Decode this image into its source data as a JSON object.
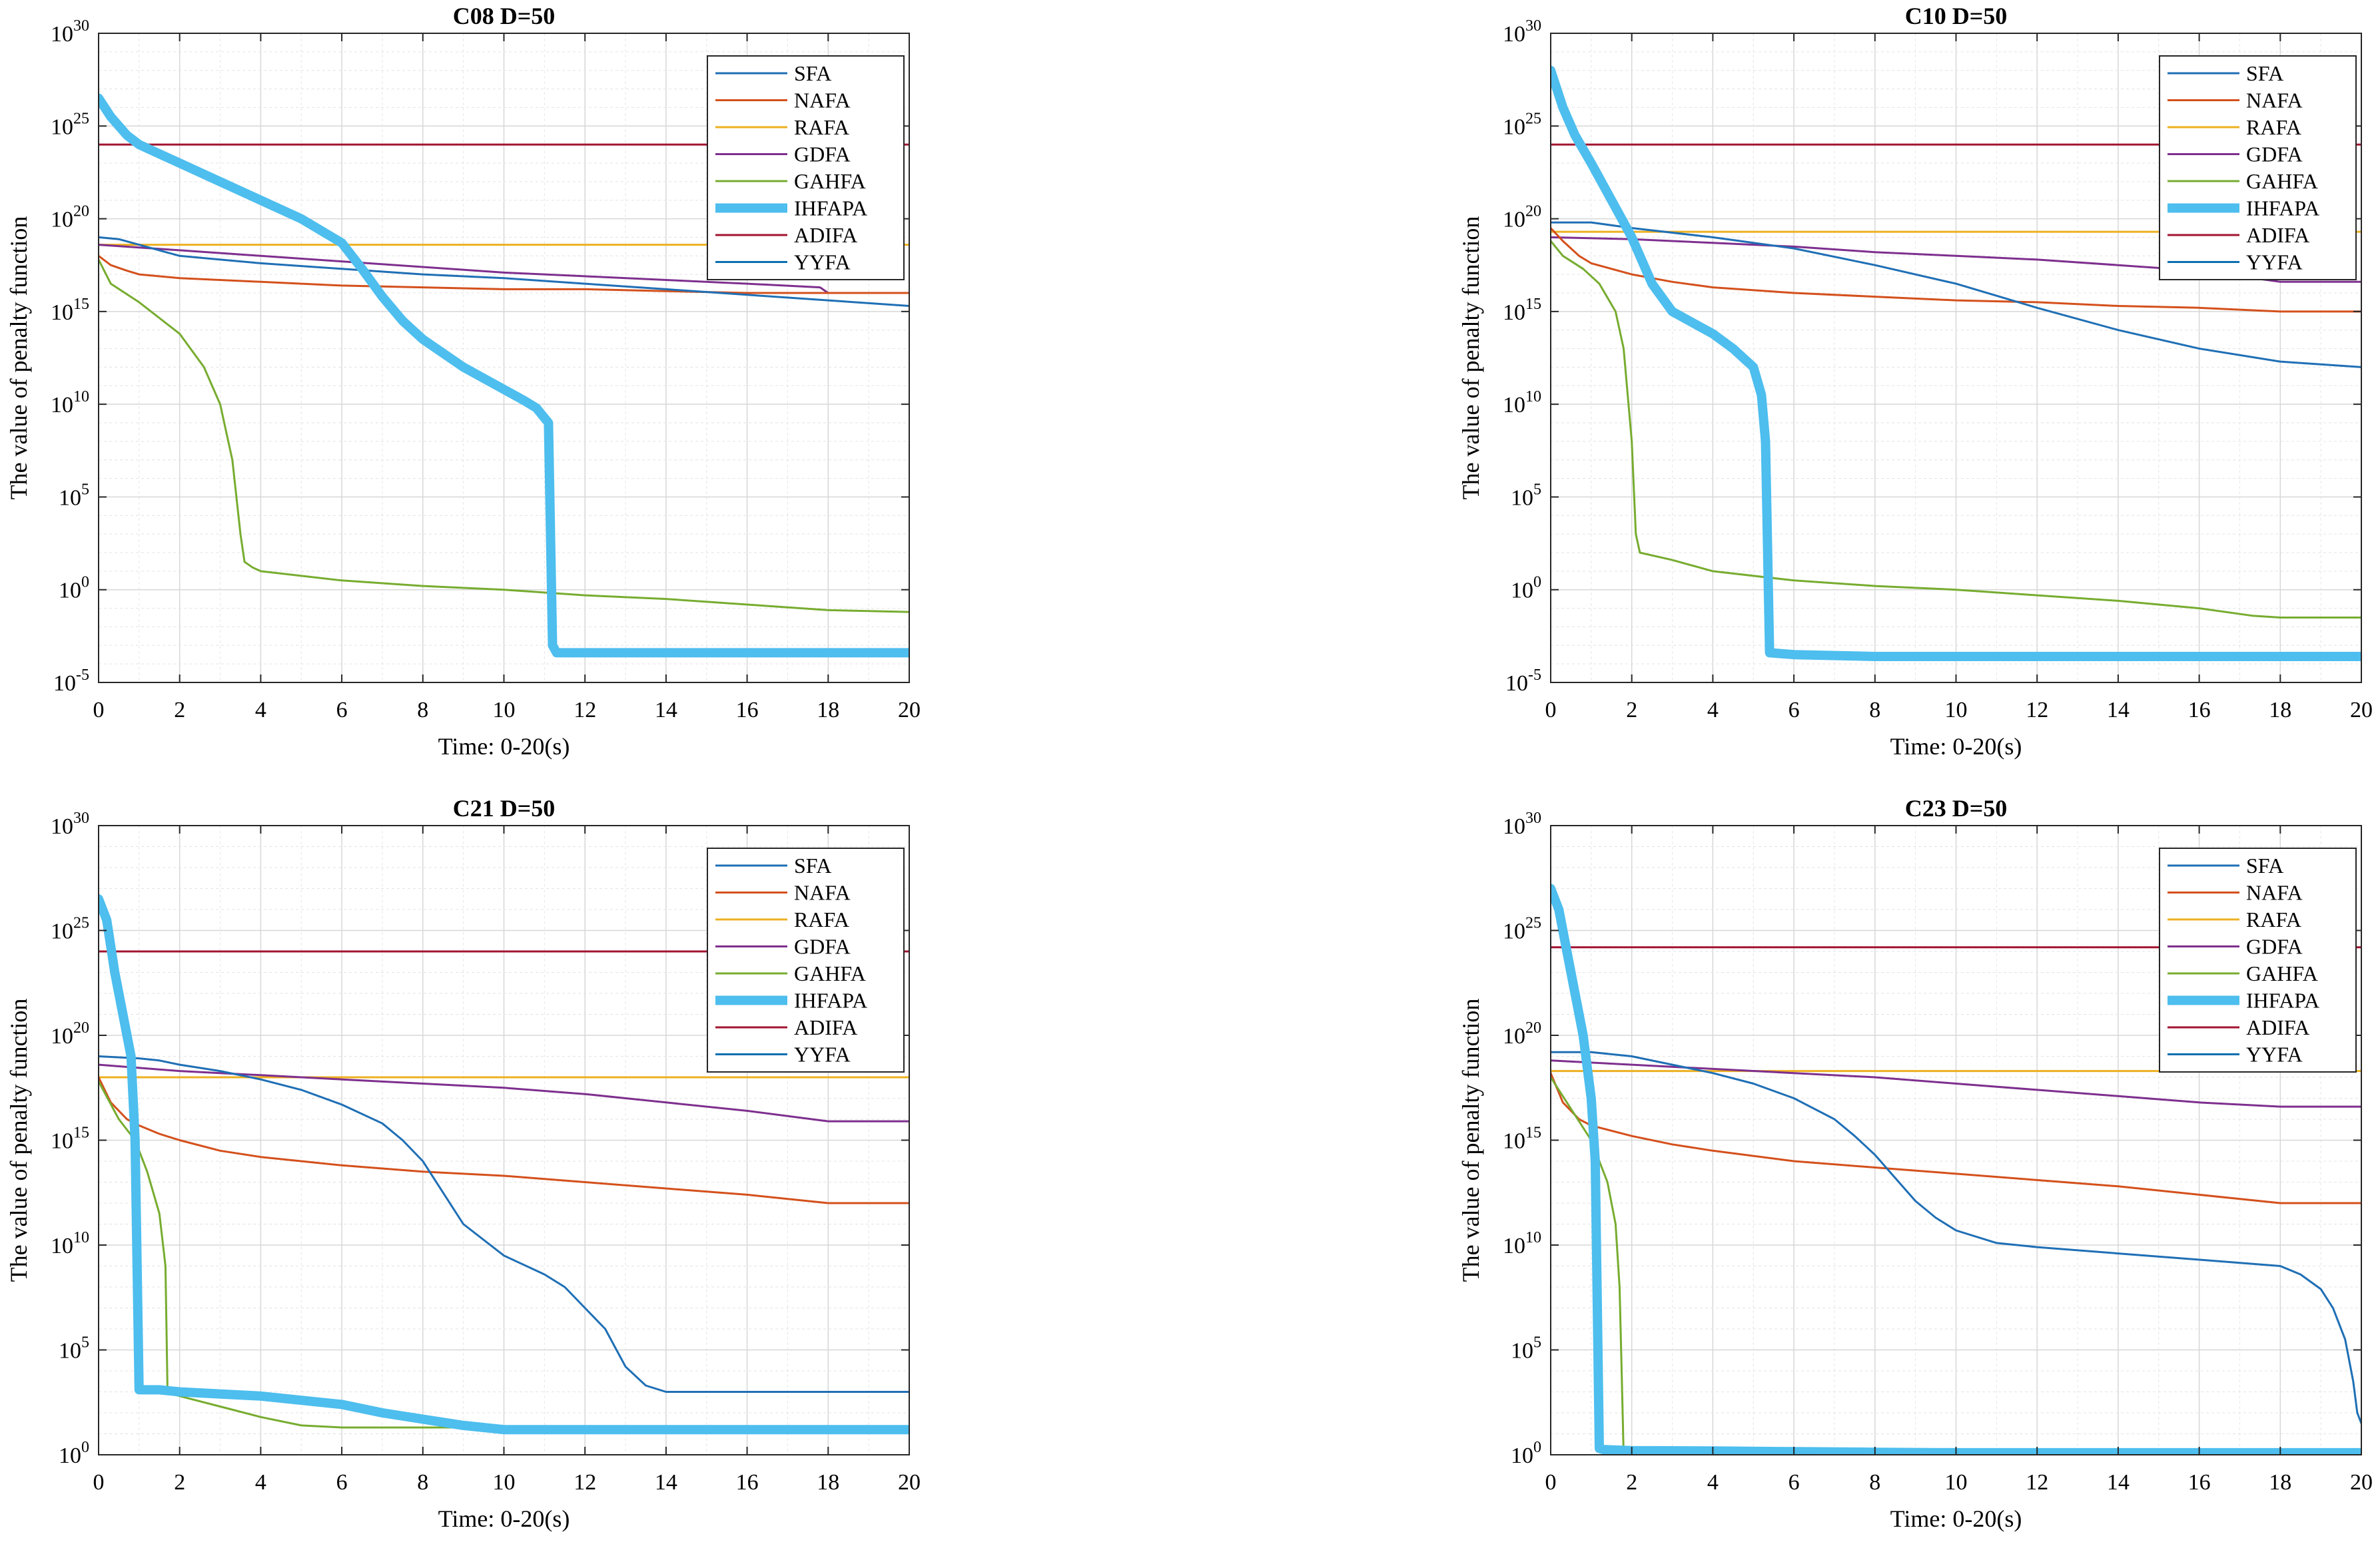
{
  "colors": {
    "SFA": "#1f6fb5",
    "NAFA": "#d4501c",
    "RAFA": "#edb021",
    "GDFA": "#7e2f8e",
    "GAHFA": "#77ac30",
    "IHFAPA": "#4dbeee",
    "ADIFA": "#a2142f",
    "YYFA": "#0b6fb0"
  },
  "chart_data": [
    {
      "type": "line",
      "title": "C08  D=50",
      "xlabel": "Time:   0-20(s)",
      "ylabel": "The value of penalty function",
      "xlim": [
        0,
        20
      ],
      "xticks": [
        "0",
        "2",
        "4",
        "6",
        "8",
        "10",
        "12",
        "14",
        "16",
        "18",
        "20"
      ],
      "yscale": "log",
      "ylim_exp": [
        -5,
        30
      ],
      "ytick_exps": [
        -5,
        0,
        5,
        10,
        15,
        20,
        25,
        30
      ],
      "grid": true,
      "legend_position": "top-right",
      "series": [
        {
          "name": "SFA",
          "x": [
            0,
            0.5,
            1,
            2,
            3,
            4,
            6,
            8,
            10,
            12,
            14,
            16,
            18,
            20
          ],
          "log10y": [
            19.0,
            18.9,
            18.6,
            18.0,
            17.8,
            17.6,
            17.3,
            17.0,
            16.8,
            16.5,
            16.2,
            15.9,
            15.6,
            15.3
          ]
        },
        {
          "name": "NAFA",
          "x": [
            0,
            0.3,
            0.7,
            1,
            2,
            4,
            6,
            8,
            10,
            12,
            14,
            16,
            18,
            20
          ],
          "log10y": [
            18.0,
            17.5,
            17.2,
            17.0,
            16.8,
            16.6,
            16.4,
            16.3,
            16.2,
            16.2,
            16.1,
            16.0,
            16.0,
            16.0
          ]
        },
        {
          "name": "RAFA",
          "x": [
            0,
            20
          ],
          "log10y": [
            18.6,
            18.6
          ]
        },
        {
          "name": "GDFA",
          "x": [
            0,
            2,
            4,
            6,
            8,
            10,
            12,
            14,
            16,
            17.8,
            18,
            20
          ],
          "log10y": [
            18.6,
            18.3,
            18.0,
            17.7,
            17.4,
            17.1,
            16.9,
            16.7,
            16.5,
            16.3,
            16.0,
            16.0
          ]
        },
        {
          "name": "GAHFA",
          "x": [
            0,
            0.3,
            1,
            2,
            2.6,
            3,
            3.3,
            3.5,
            3.6,
            3.8,
            4,
            6,
            8,
            10,
            12,
            14,
            16,
            18,
            20
          ],
          "log10y": [
            17.8,
            16.5,
            15.5,
            13.8,
            12.0,
            10.0,
            7.0,
            3.0,
            1.5,
            1.2,
            1.0,
            0.5,
            0.2,
            0.0,
            -0.3,
            -0.5,
            -0.8,
            -1.1,
            -1.2
          ]
        },
        {
          "name": "IHFAPA",
          "x": [
            0,
            0.3,
            0.7,
            1,
            2,
            3,
            4,
            5,
            6,
            6.5,
            7,
            7.5,
            8,
            9,
            10,
            10.5,
            10.8,
            11.1,
            11.2,
            11.3,
            12,
            14,
            16,
            18,
            20
          ],
          "log10y": [
            26.5,
            25.5,
            24.5,
            24.0,
            23.0,
            22.0,
            21.0,
            20.0,
            18.7,
            17.3,
            15.8,
            14.5,
            13.5,
            12.0,
            10.8,
            10.2,
            9.8,
            9.0,
            -3.0,
            -3.4,
            -3.4,
            -3.4,
            -3.4,
            -3.4,
            -3.4
          ]
        },
        {
          "name": "ADIFA",
          "x": [
            0,
            20
          ],
          "log10y": [
            24.0,
            24.0
          ]
        },
        {
          "name": "YYFA",
          "x": [
            0,
            20
          ],
          "log10y": [
            null,
            null
          ]
        }
      ]
    },
    {
      "type": "line",
      "title": "C10  D=50",
      "xlabel": "Time:   0-20(s)",
      "ylabel": "The value of penalty function",
      "xlim": [
        0,
        20
      ],
      "xticks": [
        "0",
        "2",
        "4",
        "6",
        "8",
        "10",
        "12",
        "14",
        "16",
        "18",
        "20"
      ],
      "yscale": "log",
      "ylim_exp": [
        -5,
        30
      ],
      "ytick_exps": [
        -5,
        0,
        5,
        10,
        15,
        20,
        25,
        30
      ],
      "grid": true,
      "legend_position": "top-right",
      "series": [
        {
          "name": "SFA",
          "x": [
            0,
            1,
            2,
            4,
            6,
            8,
            10,
            12,
            14,
            16,
            18,
            20
          ],
          "log10y": [
            19.8,
            19.8,
            19.5,
            19.0,
            18.4,
            17.5,
            16.5,
            15.2,
            14.0,
            13.0,
            12.3,
            12.0
          ]
        },
        {
          "name": "NAFA",
          "x": [
            0,
            0.3,
            0.7,
            1,
            2,
            3,
            4,
            6,
            8,
            10,
            12,
            14,
            16,
            18,
            20
          ],
          "log10y": [
            19.5,
            18.8,
            18.0,
            17.6,
            17.0,
            16.6,
            16.3,
            16.0,
            15.8,
            15.6,
            15.5,
            15.3,
            15.2,
            15.0,
            15.0
          ]
        },
        {
          "name": "RAFA",
          "x": [
            0,
            20
          ],
          "log10y": [
            19.3,
            19.3
          ]
        },
        {
          "name": "GDFA",
          "x": [
            0,
            2,
            4,
            6,
            8,
            10,
            12,
            14,
            16,
            18,
            20
          ],
          "log10y": [
            19.0,
            18.9,
            18.7,
            18.5,
            18.2,
            18.0,
            17.8,
            17.5,
            17.2,
            16.6,
            16.6
          ]
        },
        {
          "name": "GAHFA",
          "x": [
            0,
            0.3,
            0.8,
            1.2,
            1.6,
            1.8,
            2.0,
            2.1,
            2.2,
            3,
            4,
            6,
            8,
            10,
            12,
            14,
            16,
            17.3,
            18,
            20
          ],
          "log10y": [
            18.8,
            18.0,
            17.3,
            16.5,
            15.0,
            13.0,
            8.0,
            3.0,
            2.0,
            1.6,
            1.0,
            0.5,
            0.2,
            0.0,
            -0.3,
            -0.6,
            -1.0,
            -1.4,
            -1.5,
            -1.5
          ]
        },
        {
          "name": "IHFAPA",
          "x": [
            0,
            0.3,
            0.6,
            1,
            1.5,
            2,
            2.5,
            3,
            4,
            4.5,
            5,
            5.2,
            5.3,
            5.4,
            6,
            8,
            10,
            14,
            20
          ],
          "log10y": [
            28.0,
            26.0,
            24.5,
            23.0,
            21.0,
            19.0,
            16.5,
            15.0,
            13.8,
            13.0,
            12.0,
            10.5,
            8.0,
            -3.4,
            -3.5,
            -3.6,
            -3.6,
            -3.6,
            -3.6
          ]
        },
        {
          "name": "ADIFA",
          "x": [
            0,
            20
          ],
          "log10y": [
            24.0,
            24.0
          ]
        },
        {
          "name": "YYFA",
          "x": [
            0,
            20
          ],
          "log10y": [
            null,
            null
          ]
        }
      ]
    },
    {
      "type": "line",
      "title": "C21  D=50",
      "xlabel": "Time:   0-20(s)",
      "ylabel": "The value of penalty function",
      "xlim": [
        0,
        20
      ],
      "xticks": [
        "0",
        "2",
        "4",
        "6",
        "8",
        "10",
        "12",
        "14",
        "16",
        "18",
        "20"
      ],
      "yscale": "log",
      "ylim_exp": [
        0,
        30
      ],
      "ytick_exps": [
        0,
        5,
        10,
        15,
        20,
        25,
        30
      ],
      "grid": true,
      "legend_position": "top-right",
      "series": [
        {
          "name": "SFA",
          "x": [
            0,
            1,
            1.5,
            2,
            3,
            4,
            5,
            6,
            7,
            7.5,
            8,
            8.5,
            9,
            10,
            11,
            11.5,
            12,
            12.5,
            13,
            13.5,
            14,
            14.5,
            16,
            18,
            20
          ],
          "log10y": [
            19.0,
            18.9,
            18.8,
            18.6,
            18.3,
            17.9,
            17.4,
            16.7,
            15.8,
            15.0,
            14.0,
            12.5,
            11.0,
            9.5,
            8.6,
            8.0,
            7.0,
            6.0,
            4.2,
            3.3,
            3.0,
            3.0,
            3.0,
            3.0,
            3.0
          ]
        },
        {
          "name": "NAFA",
          "x": [
            0,
            0.3,
            0.7,
            1,
            1.5,
            2,
            3,
            4,
            6,
            8,
            10,
            12,
            14,
            16,
            18,
            20
          ],
          "log10y": [
            18.0,
            16.8,
            16.0,
            15.7,
            15.3,
            15.0,
            14.5,
            14.2,
            13.8,
            13.5,
            13.3,
            13.0,
            12.7,
            12.4,
            12.0,
            12.0
          ]
        },
        {
          "name": "RAFA",
          "x": [
            0,
            20
          ],
          "log10y": [
            18.0,
            18.0
          ]
        },
        {
          "name": "GDFA",
          "x": [
            0,
            2,
            4,
            6,
            8,
            10,
            12,
            14,
            16,
            18,
            20
          ],
          "log10y": [
            18.6,
            18.3,
            18.1,
            17.9,
            17.7,
            17.5,
            17.2,
            16.8,
            16.4,
            15.9,
            15.9
          ]
        },
        {
          "name": "GAHFA",
          "x": [
            0,
            0.5,
            0.9,
            1.2,
            1.5,
            1.65,
            1.7,
            1.8,
            2,
            3,
            4,
            5,
            6,
            8,
            10,
            12,
            14,
            16,
            18,
            20
          ],
          "log10y": [
            17.8,
            16.0,
            15.0,
            13.5,
            11.5,
            9.0,
            3.2,
            2.9,
            2.8,
            2.3,
            1.8,
            1.4,
            1.3,
            1.3,
            1.3,
            1.3,
            1.3,
            1.3,
            1.3,
            1.3
          ]
        },
        {
          "name": "IHFAPA",
          "x": [
            0,
            0.2,
            0.4,
            0.6,
            0.8,
            0.9,
            1.0,
            1.5,
            2,
            4,
            6,
            7,
            8,
            9,
            10,
            12,
            14,
            16,
            18,
            20
          ],
          "log10y": [
            26.5,
            25.5,
            23.0,
            21.0,
            19.0,
            15.0,
            3.1,
            3.1,
            3.0,
            2.8,
            2.4,
            2.0,
            1.7,
            1.4,
            1.2,
            1.2,
            1.2,
            1.2,
            1.2,
            1.2
          ]
        },
        {
          "name": "ADIFA",
          "x": [
            0,
            20
          ],
          "log10y": [
            24.0,
            24.0
          ]
        },
        {
          "name": "YYFA",
          "x": [
            0,
            20
          ],
          "log10y": [
            null,
            null
          ]
        }
      ]
    },
    {
      "type": "line",
      "title": "C23  D=50",
      "xlabel": "Time:   0-20(s)",
      "ylabel": "The value of penalty function",
      "xlim": [
        0,
        20
      ],
      "xticks": [
        "0",
        "2",
        "4",
        "6",
        "8",
        "10",
        "12",
        "14",
        "16",
        "18",
        "20"
      ],
      "yscale": "log",
      "ylim_exp": [
        0,
        30
      ],
      "ytick_exps": [
        0,
        5,
        10,
        15,
        20,
        25,
        30
      ],
      "grid": true,
      "legend_position": "top-right",
      "series": [
        {
          "name": "SFA",
          "x": [
            0,
            1,
            2,
            3,
            4,
            5,
            6,
            7,
            7.5,
            8,
            8.5,
            9,
            9.5,
            10,
            11,
            12,
            14,
            16,
            18,
            18.5,
            19,
            19.3,
            19.6,
            19.8,
            19.9,
            20
          ],
          "log10y": [
            19.2,
            19.2,
            19.0,
            18.6,
            18.2,
            17.7,
            17.0,
            16.0,
            15.2,
            14.3,
            13.2,
            12.1,
            11.3,
            10.7,
            10.1,
            9.9,
            9.6,
            9.3,
            9.0,
            8.6,
            7.9,
            7.0,
            5.5,
            3.5,
            2.0,
            1.5
          ]
        },
        {
          "name": "NAFA",
          "x": [
            0,
            0.3,
            0.7,
            1,
            2,
            3,
            4,
            6,
            8,
            10,
            12,
            14,
            16,
            18,
            20
          ],
          "log10y": [
            18.2,
            16.8,
            16.0,
            15.7,
            15.2,
            14.8,
            14.5,
            14.0,
            13.7,
            13.4,
            13.1,
            12.8,
            12.4,
            12.0,
            12.0
          ]
        },
        {
          "name": "RAFA",
          "x": [
            0,
            20
          ],
          "log10y": [
            18.3,
            18.3
          ]
        },
        {
          "name": "GDFA",
          "x": [
            0,
            2,
            4,
            6,
            8,
            10,
            12,
            14,
            16,
            18,
            20
          ],
          "log10y": [
            18.8,
            18.6,
            18.4,
            18.2,
            18.0,
            17.7,
            17.4,
            17.1,
            16.8,
            16.6,
            16.6
          ]
        },
        {
          "name": "GAHFA",
          "x": [
            0,
            0.5,
            1.0,
            1.4,
            1.6,
            1.7,
            1.75,
            1.8,
            2
          ],
          "log10y": [
            18.0,
            16.5,
            15.0,
            13.0,
            11.0,
            8.0,
            4.0,
            0.0,
            null
          ]
        },
        {
          "name": "IHFAPA",
          "x": [
            0,
            0.2,
            0.4,
            0.6,
            0.8,
            1.0,
            1.1,
            1.2,
            1.3,
            2,
            4,
            6,
            8,
            10,
            12,
            14,
            16,
            18,
            20
          ],
          "log10y": [
            27.0,
            26.0,
            24.0,
            22.0,
            20.0,
            17.0,
            14.0,
            0.3,
            0.25,
            0.2,
            0.18,
            0.15,
            0.12,
            0.1,
            0.1,
            0.1,
            0.1,
            0.1,
            0.1
          ]
        },
        {
          "name": "ADIFA",
          "x": [
            0,
            20
          ],
          "log10y": [
            24.2,
            24.2
          ]
        },
        {
          "name": "YYFA",
          "x": [
            0,
            20
          ],
          "log10y": [
            null,
            null
          ]
        }
      ]
    }
  ]
}
